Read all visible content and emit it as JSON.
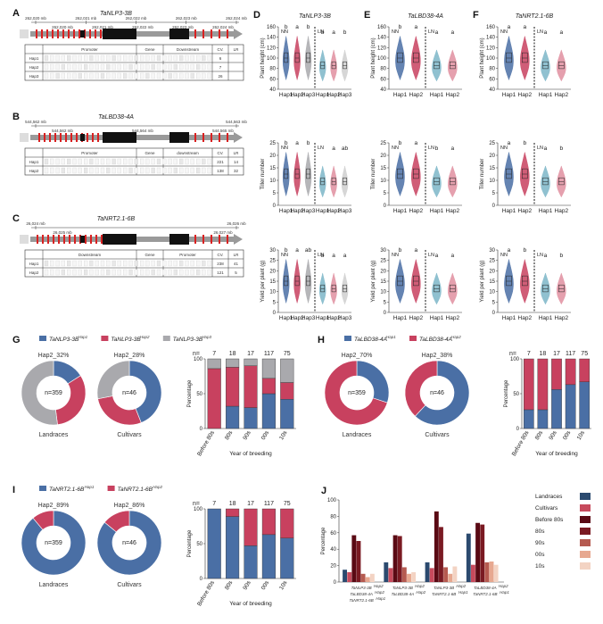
{
  "colors": {
    "hap1": "#4a6fa5",
    "hap2": "#c8415f",
    "hap3": "#a9a9ad",
    "gene_red": "#d92020",
    "gene_black": "#111111",
    "gene_gray": "#9a9a9a",
    "ln_hap1": "#7cb6c8",
    "ln_hap2": "#e08fa0",
    "ln_hap3": "#cfcfcf"
  },
  "panels": {
    "A": "A",
    "B": "B",
    "C": "C",
    "D": "D",
    "E": "E",
    "F": "F",
    "G": "G",
    "H": "H",
    "I": "I",
    "J": "J"
  },
  "gene_panels": [
    {
      "id": "A",
      "title": "TaNLP3-3B",
      "coords_top": [
        "262,020 mb",
        "262,021 mb",
        "262,022 mb",
        "262,023 mb",
        "262,024 mb"
      ],
      "coords_mid": [
        "262,020 mb",
        "262,021 mb",
        "262,022 mb",
        "262,023 mb",
        "262,024 mb"
      ],
      "table_headers": [
        "Promoter",
        "Gene",
        "Downstream",
        "CV.",
        "LR"
      ],
      "rows": [
        "Hap1",
        "Hap2",
        "Hap3"
      ],
      "cv": [
        "6",
        "7",
        "26"
      ],
      "lr": [
        "",
        "",
        ""
      ]
    },
    {
      "id": "B",
      "title": "TaLBD38-4A",
      "coords_top": [
        "544,562 mb",
        "544,563 mb"
      ],
      "coords_mid": [
        "544,562 mb",
        "544,564 mb",
        "544,565 mb"
      ],
      "table_headers": [
        "Promoter",
        "Gene",
        "downstream",
        "CV.",
        "LR"
      ],
      "rows": [
        "Hap1",
        "Hap2"
      ],
      "cv": [
        "221",
        "138"
      ],
      "lr": [
        "14",
        "32"
      ]
    },
    {
      "id": "C",
      "title": "TaNRT2.1-6B",
      "coords_top": [
        "26,024 mb",
        "26,026 mb"
      ],
      "coords_mid": [
        "26,025 mb",
        "26,027 mb"
      ],
      "table_headers": [
        "Downstream",
        "Gene",
        "Promoter",
        "CV.",
        "LR"
      ],
      "rows": [
        "Hap1",
        "Hap2"
      ],
      "cv": [
        "238",
        "121"
      ],
      "lr": [
        "41",
        "5"
      ]
    }
  ],
  "violin_cols": [
    {
      "id": "D",
      "title": "TaNLP3-3B",
      "nn_haps": [
        "Hap1",
        "Hap2",
        "Hap3"
      ],
      "ln_haps": [
        "Hap1",
        "Hap2",
        "Hap3"
      ]
    },
    {
      "id": "E",
      "title": "TaLBD38-4A",
      "nn_haps": [
        "Hap1",
        "Hap2"
      ],
      "ln_haps": [
        "Hap1",
        "Hap2"
      ]
    },
    {
      "id": "F",
      "title": "TaNRT2.1-6B",
      "nn_haps": [
        "Hap1",
        "Hap2"
      ],
      "ln_haps": [
        "Hap1",
        "Hap2"
      ]
    }
  ],
  "violin_rows": [
    {
      "ylabel": "Plant height (cm)",
      "ticks": [
        "40",
        "60",
        "80",
        "100",
        "120",
        "140",
        "160"
      ]
    },
    {
      "ylabel": "Tiller number",
      "ticks": [
        "0",
        "5",
        "10",
        "15",
        "20",
        "25"
      ]
    },
    {
      "ylabel": "Yield per plant (g)",
      "ticks": [
        "0",
        "5",
        "10",
        "15",
        "20",
        "25",
        "30"
      ]
    }
  ],
  "violin_sig": {
    "D": [
      [
        "b",
        "a",
        "b",
        "b",
        "a",
        "b"
      ],
      [
        "b",
        "a",
        "b",
        "",
        "a",
        "ab"
      ],
      [
        "b",
        "a",
        "ab",
        "b",
        "a",
        "a"
      ]
    ],
    "E": [
      [
        "b",
        "a",
        "a",
        "a"
      ],
      [
        "b",
        "a",
        "b",
        "a"
      ],
      [
        "b",
        "a",
        "a",
        "a"
      ]
    ],
    "F": [
      [
        "a",
        "a",
        "a",
        "a"
      ],
      [
        "a",
        "b",
        "a",
        "b"
      ],
      [
        "a",
        "b",
        "a",
        "b"
      ]
    ]
  },
  "labels": {
    "nn": "NN",
    "ln": "LN",
    "landraces": "Landraces",
    "cultivars": "Cultivars",
    "year": "Year of breeding",
    "pct": "Percentage",
    "n_prefix": "n=",
    "n359": "n=359",
    "n46": "n=46"
  },
  "G": {
    "legend": [
      "TaNLP3-3B",
      "TaNLP3-3B",
      "TaNLP3-3B"
    ],
    "legend_sup": [
      "Hap1",
      "Hap2",
      "Hap3"
    ],
    "donut_titles": [
      "Hap2_32%",
      "Hap2_28%"
    ],
    "landraces": [
      16,
      32,
      52
    ],
    "cultivars": [
      44,
      28,
      28
    ]
  },
  "H": {
    "legend": [
      "TaLBD38-4A",
      "TaLBD38-4A"
    ],
    "legend_sup": [
      "Hap1",
      "Hap2"
    ],
    "donut_titles": [
      "Hap2_70%",
      "Hap2_38%"
    ],
    "landraces": [
      30,
      70
    ],
    "cultivars": [
      62,
      38
    ]
  },
  "I": {
    "legend": [
      "TaNRT2.1-6B",
      "TaNRT2.1-6B"
    ],
    "legend_sup": [
      "Hap1",
      "Hap2"
    ],
    "donut_titles": [
      "Hap2_89%",
      "Hap2_86%"
    ],
    "landraces": [
      89,
      11
    ],
    "cultivars": [
      86,
      14
    ]
  },
  "chart_data": [
    {
      "type": "bar",
      "id": "G",
      "stacked": true,
      "categories": [
        "Before 80s",
        "80s",
        "90s",
        "00s",
        "10s"
      ],
      "n": [
        "7",
        "18",
        "17",
        "117",
        "75"
      ],
      "xlabel": "Year of breeding",
      "ylabel": "Percentage",
      "ylim": [
        0,
        100
      ],
      "series": [
        {
          "name": "Hap1",
          "values": [
            0,
            32,
            30,
            50,
            42
          ]
        },
        {
          "name": "Hap2",
          "values": [
            86,
            56,
            60,
            22,
            24
          ]
        },
        {
          "name": "Hap3",
          "values": [
            14,
            12,
            10,
            28,
            34
          ]
        }
      ]
    },
    {
      "type": "bar",
      "id": "H",
      "stacked": true,
      "categories": [
        "Before 80s",
        "80s",
        "90s",
        "00s",
        "10s"
      ],
      "n": [
        "7",
        "18",
        "17",
        "117",
        "75"
      ],
      "xlabel": "Year of breeding",
      "ylabel": "Percentage",
      "ylim": [
        0,
        100
      ],
      "series": [
        {
          "name": "Hap1",
          "values": [
            27,
            27,
            56,
            63,
            67
          ]
        },
        {
          "name": "Hap2",
          "values": [
            73,
            73,
            44,
            37,
            33
          ]
        }
      ]
    },
    {
      "type": "bar",
      "id": "I",
      "stacked": true,
      "categories": [
        "Before 80s",
        "80s",
        "90s",
        "00s",
        "10s"
      ],
      "n": [
        "7",
        "18",
        "17",
        "117",
        "75"
      ],
      "xlabel": "Year of breeding",
      "ylabel": "Percentage",
      "ylim": [
        0,
        100
      ],
      "series": [
        {
          "name": "Hap1",
          "values": [
            100,
            89,
            47,
            63,
            58
          ]
        },
        {
          "name": "Hap2",
          "values": [
            0,
            11,
            53,
            37,
            42
          ]
        }
      ]
    },
    {
      "type": "bar",
      "id": "J",
      "ylabel": "Percentage",
      "ylim": [
        0,
        100
      ],
      "categories": [
        "TaNLP3-3B Hap2 / TaLBD38-4A Hap2 / TaNRT2.1-6B Hap1",
        "TaNLP3-3B Hap2 / TaLBD38-4A Hap2",
        "TaNLP3-3B Hap2 / TaNRT2.1-6B Hap1",
        "TaLBD38-4A Hap2 / TaNRT2.1-6B Hap1"
      ],
      "series": [
        {
          "name": "Landraces",
          "values": [
            15,
            24,
            24,
            59
          ]
        },
        {
          "name": "Cultivars",
          "values": [
            12,
            17,
            17,
            21
          ]
        },
        {
          "name": "Before 80s",
          "values": [
            57,
            57,
            86,
            72
          ]
        },
        {
          "name": "80s",
          "values": [
            50,
            56,
            67,
            70
          ]
        },
        {
          "name": "90s",
          "values": [
            10,
            18,
            18,
            24
          ]
        },
        {
          "name": "00s",
          "values": [
            6,
            10,
            10,
            25
          ]
        },
        {
          "name": "10s",
          "values": [
            10,
            12,
            19,
            21
          ]
        }
      ]
    }
  ],
  "J": {
    "legend": [
      "Landraces",
      "Cultivars",
      "Before 80s",
      "80s",
      "90s",
      "00s",
      "10s"
    ],
    "legend_colors": [
      "#2b4a6f",
      "#c74a5c",
      "#5a0a14",
      "#7a1a22",
      "#b55a50",
      "#e7a890",
      "#f3d3c3"
    ],
    "xlabels": [
      [
        "TaNLP3-3B",
        "Hap2",
        "TaLBD38-4A",
        "Hap2",
        "TaNRT2.1-6B",
        "Hap1"
      ],
      [
        "TaNLP3-3B",
        "Hap2",
        "TaLBD38-4A",
        "Hap2"
      ],
      [
        "TaNLP3-3B",
        "Hap2",
        "TaNRT2.1-6B",
        "Hap1"
      ],
      [
        "TaLBD38-4A",
        "Hap2",
        "TaNRT2.1-6B",
        "Hap1"
      ]
    ]
  }
}
